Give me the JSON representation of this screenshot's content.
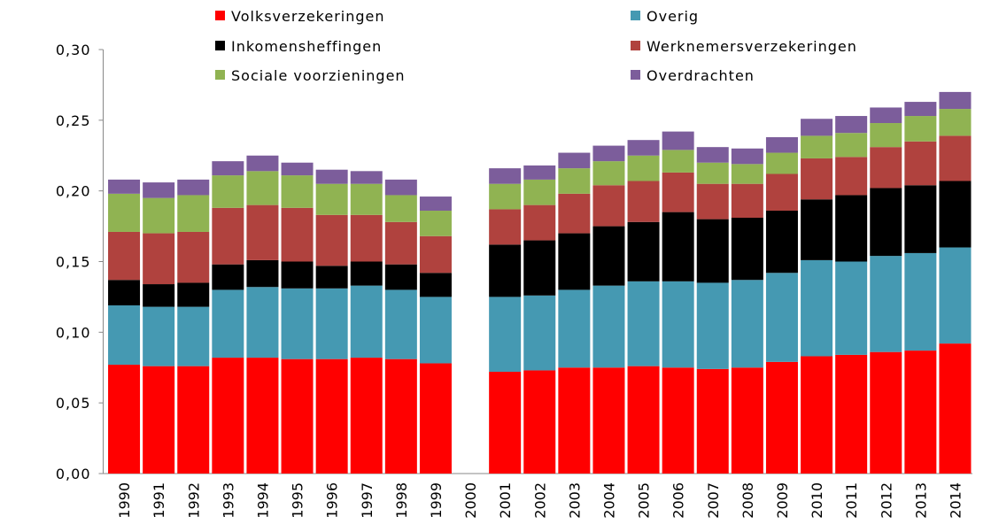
{
  "chart_data": {
    "type": "stacked_bar",
    "categories": [
      "1990",
      "1991",
      "1992",
      "1993",
      "1994",
      "1995",
      "1996",
      "1997",
      "1998",
      "1999",
      "2000",
      "2001",
      "2002",
      "2003",
      "2004",
      "2005",
      "2006",
      "2007",
      "2008",
      "2009",
      "2010",
      "2011",
      "2012",
      "2013",
      "2014"
    ],
    "series": [
      {
        "name": "Volksverzekeringen",
        "color": "#ff0000",
        "values": [
          0.077,
          0.076,
          0.076,
          0.082,
          0.082,
          0.081,
          0.081,
          0.082,
          0.081,
          0.078,
          null,
          0.072,
          0.073,
          0.075,
          0.075,
          0.076,
          0.075,
          0.074,
          0.075,
          0.079,
          0.083,
          0.084,
          0.086,
          0.087,
          0.092
        ]
      },
      {
        "name": "Overig",
        "color": "#4599b2",
        "values": [
          0.042,
          0.042,
          0.042,
          0.048,
          0.05,
          0.05,
          0.05,
          0.051,
          0.049,
          0.047,
          null,
          0.053,
          0.053,
          0.055,
          0.058,
          0.06,
          0.061,
          0.061,
          0.062,
          0.063,
          0.068,
          0.066,
          0.068,
          0.069,
          0.068
        ]
      },
      {
        "name": "Inkomensheffingen",
        "color": "#000000",
        "values": [
          0.018,
          0.016,
          0.017,
          0.018,
          0.019,
          0.019,
          0.016,
          0.017,
          0.018,
          0.017,
          null,
          0.037,
          0.039,
          0.04,
          0.042,
          0.042,
          0.049,
          0.045,
          0.044,
          0.044,
          0.043,
          0.047,
          0.048,
          0.048,
          0.047
        ]
      },
      {
        "name": "Werknemersverzekeringen",
        "color": "#b0423e",
        "values": [
          0.034,
          0.036,
          0.036,
          0.04,
          0.039,
          0.038,
          0.036,
          0.033,
          0.03,
          0.026,
          null,
          0.025,
          0.025,
          0.028,
          0.029,
          0.029,
          0.028,
          0.025,
          0.024,
          0.026,
          0.029,
          0.027,
          0.029,
          0.031,
          0.032
        ]
      },
      {
        "name": "Sociale voorzieningen",
        "color": "#90b352",
        "values": [
          0.027,
          0.025,
          0.026,
          0.023,
          0.024,
          0.023,
          0.022,
          0.022,
          0.019,
          0.018,
          null,
          0.018,
          0.018,
          0.018,
          0.017,
          0.018,
          0.016,
          0.015,
          0.014,
          0.015,
          0.016,
          0.017,
          0.017,
          0.018,
          0.019
        ]
      },
      {
        "name": "Overdrachten",
        "color": "#7c5d9b",
        "values": [
          0.01,
          0.011,
          0.011,
          0.01,
          0.011,
          0.009,
          0.01,
          0.009,
          0.011,
          0.01,
          null,
          0.011,
          0.01,
          0.011,
          0.011,
          0.011,
          0.013,
          0.011,
          0.011,
          0.011,
          0.012,
          0.012,
          0.011,
          0.01,
          0.012
        ]
      }
    ],
    "ylim": [
      0,
      0.3
    ],
    "yticks": [
      {
        "value": 0,
        "label": "0,00"
      },
      {
        "value": 0.05,
        "label": "0,05"
      },
      {
        "value": 0.1,
        "label": "0,10"
      },
      {
        "value": 0.15,
        "label": "0,15"
      },
      {
        "value": 0.2,
        "label": "0,20"
      },
      {
        "value": 0.25,
        "label": "0,25"
      },
      {
        "value": 0.3,
        "label": "0,30"
      }
    ],
    "grid": false,
    "legend": "top"
  }
}
